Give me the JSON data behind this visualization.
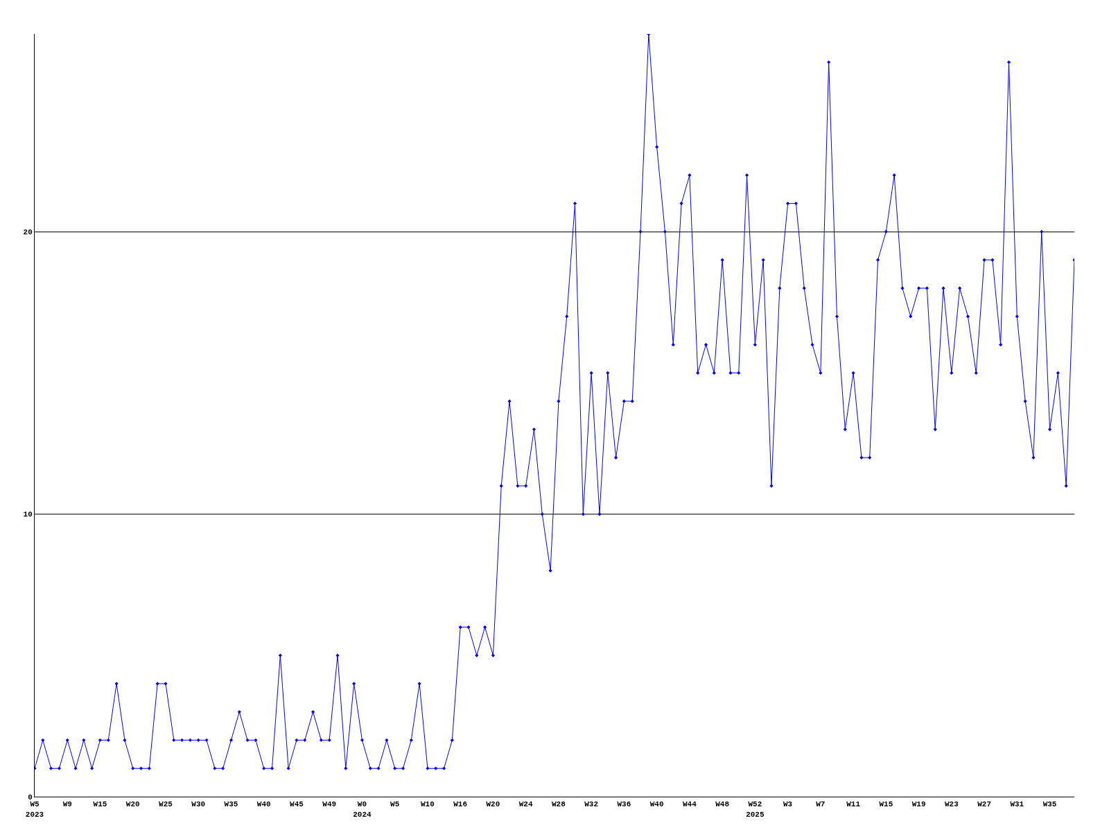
{
  "chart_data": {
    "type": "line",
    "categories": [
      "W5\n2023",
      null,
      null,
      null,
      "W9",
      null,
      null,
      null,
      "W15",
      null,
      null,
      null,
      "W20",
      null,
      null,
      null,
      "W25",
      null,
      null,
      null,
      "W30",
      null,
      null,
      null,
      "W35",
      null,
      null,
      null,
      "W40",
      null,
      null,
      null,
      "W45",
      null,
      null,
      null,
      "W49",
      null,
      null,
      null,
      "W0\n2024",
      null,
      null,
      null,
      "W5",
      null,
      null,
      null,
      "W10",
      null,
      null,
      null,
      "W16",
      null,
      null,
      null,
      "W20",
      null,
      null,
      null,
      "W24",
      null,
      null,
      null,
      "W28",
      null,
      null,
      null,
      "W32",
      null,
      null,
      null,
      "W36",
      null,
      null,
      null,
      "W40",
      null,
      null,
      null,
      "W44",
      null,
      null,
      null,
      "W48",
      null,
      null,
      null,
      "W52\n2025",
      null,
      null,
      null,
      "W3",
      null,
      null,
      null,
      "W7",
      null,
      null,
      null,
      "W11",
      null,
      null,
      null,
      "W15",
      null,
      null,
      null,
      "W19",
      null,
      null,
      null,
      "W23",
      null,
      null,
      null,
      "W27",
      null,
      null,
      null,
      "W31",
      null,
      null,
      null,
      "W35",
      null,
      null,
      null
    ],
    "series": [
      {
        "color": "#0000ff",
        "values": [
          1,
          2,
          1,
          1,
          2,
          1,
          2,
          1,
          2,
          2,
          4,
          2,
          1,
          1,
          1,
          4,
          4,
          2,
          2,
          2,
          2,
          2,
          1,
          1,
          2,
          3,
          2,
          2,
          1,
          1,
          5,
          1,
          2,
          2,
          3,
          2,
          2,
          5,
          1,
          4,
          2,
          1,
          1,
          2,
          1,
          1,
          2,
          4,
          1,
          1,
          1,
          2,
          6,
          6,
          5,
          6,
          5,
          11,
          14,
          11,
          11,
          13,
          10,
          8,
          14,
          17,
          21,
          10,
          15,
          10,
          15,
          12,
          14,
          14,
          20,
          27,
          23,
          20,
          16,
          21,
          22,
          15,
          16,
          15,
          19,
          15,
          15,
          22,
          16,
          19,
          11,
          18,
          21,
          21,
          18,
          16,
          15,
          26,
          17,
          13,
          15,
          12,
          12,
          19,
          20,
          22,
          18,
          17,
          18,
          18,
          13,
          18,
          15,
          18,
          17,
          15,
          19,
          19,
          16,
          26,
          17,
          14,
          12,
          20,
          13,
          15,
          11,
          19
        ]
      }
    ],
    "ylim": [
      0,
      27
    ],
    "yticks": [
      0,
      10,
      20
    ],
    "grid": "y",
    "marker": "diamond",
    "line_style": "solid"
  }
}
